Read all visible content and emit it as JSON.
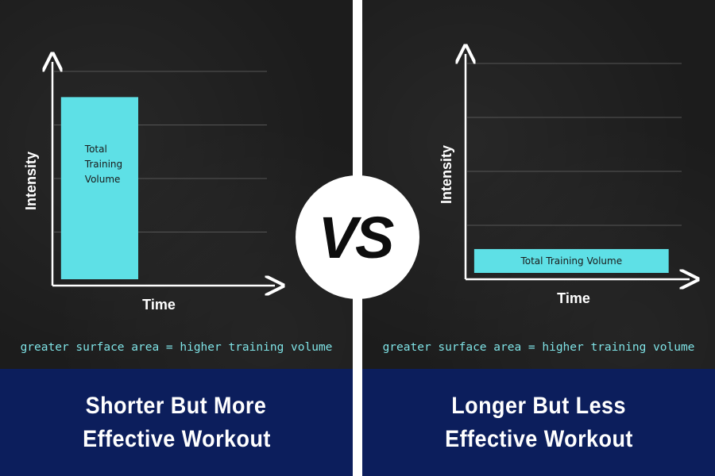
{
  "colors": {
    "panel_bg": "#1c1c1c",
    "bar": "#5ee0e6",
    "note_text": "#7fe3e6",
    "footer_bg": "#0c1e5c",
    "divider": "#ffffff"
  },
  "left": {
    "ylabel": "Intensity",
    "xlabel": "Time",
    "bar_label_lines": [
      "Total",
      "Training",
      "Volume"
    ],
    "note": "greater surface area  = higher training volume",
    "title_lines": [
      "Shorter But More",
      "Effective Workout"
    ]
  },
  "right": {
    "ylabel": "Intensity",
    "xlabel": "Time",
    "bar_label_lines": [
      "Total  Training Volume"
    ],
    "note": "greater surface area  = higher training volume",
    "title_lines": [
      "Longer But Less",
      "Effective Workout"
    ]
  },
  "vs": "VS",
  "chart_data": [
    {
      "type": "bar",
      "bars": [
        {
          "label": "Total Training Volume",
          "x_start": 0.04,
          "x_end": 0.4,
          "intensity": 0.88
        }
      ],
      "xlim": [
        0,
        1
      ],
      "ylim": [
        0,
        1
      ],
      "gridlines": [
        0.25,
        0.5,
        0.75,
        1.0
      ],
      "xlabel": "Time",
      "ylabel": "Intensity"
    },
    {
      "type": "bar",
      "bars": [
        {
          "label": "Total Training Volume",
          "x_start": 0.04,
          "x_end": 0.94,
          "intensity": 0.14
        }
      ],
      "xlim": [
        0,
        1
      ],
      "ylim": [
        0,
        1
      ],
      "gridlines": [
        0.25,
        0.5,
        0.75,
        1.0
      ],
      "xlabel": "Time",
      "ylabel": "Intensity"
    }
  ]
}
